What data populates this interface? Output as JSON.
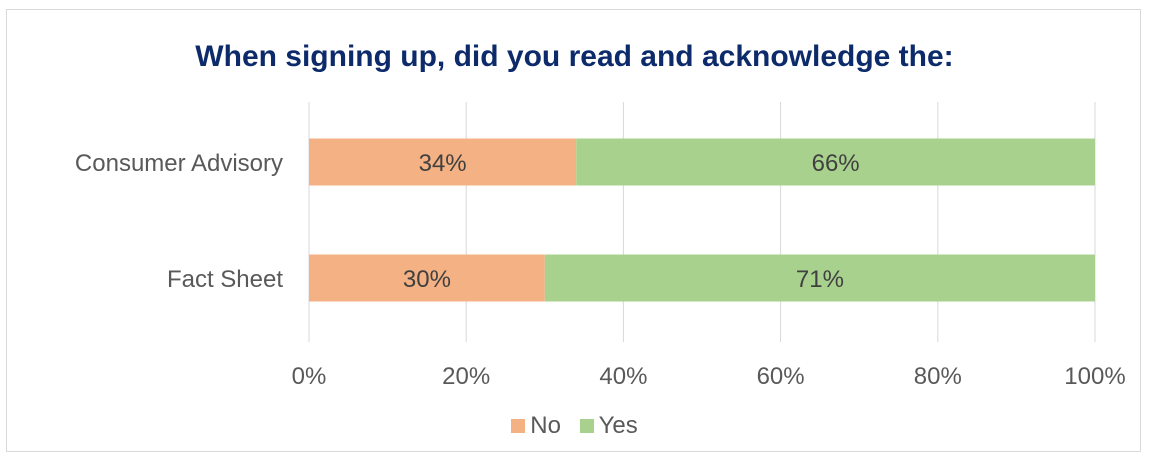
{
  "chart_data": {
    "type": "bar",
    "orientation": "horizontal",
    "stacked": true,
    "title": "When signing up, did you read and acknowledge the:",
    "categories": [
      "Consumer Advisory",
      "Fact Sheet"
    ],
    "series": [
      {
        "name": "No",
        "values": [
          34,
          30
        ],
        "labels": [
          "34%",
          "30%"
        ],
        "color": "#f4b183"
      },
      {
        "name": "Yes",
        "values": [
          66,
          71
        ],
        "labels": [
          "66%",
          "71%"
        ],
        "color": "#a9d18e"
      }
    ],
    "xlim": [
      0,
      100
    ],
    "xticks": [
      0,
      20,
      40,
      60,
      80,
      100
    ],
    "xtick_labels": [
      "0%",
      "20%",
      "40%",
      "60%",
      "80%",
      "100%"
    ],
    "grid": true,
    "legend_position": "bottom"
  }
}
